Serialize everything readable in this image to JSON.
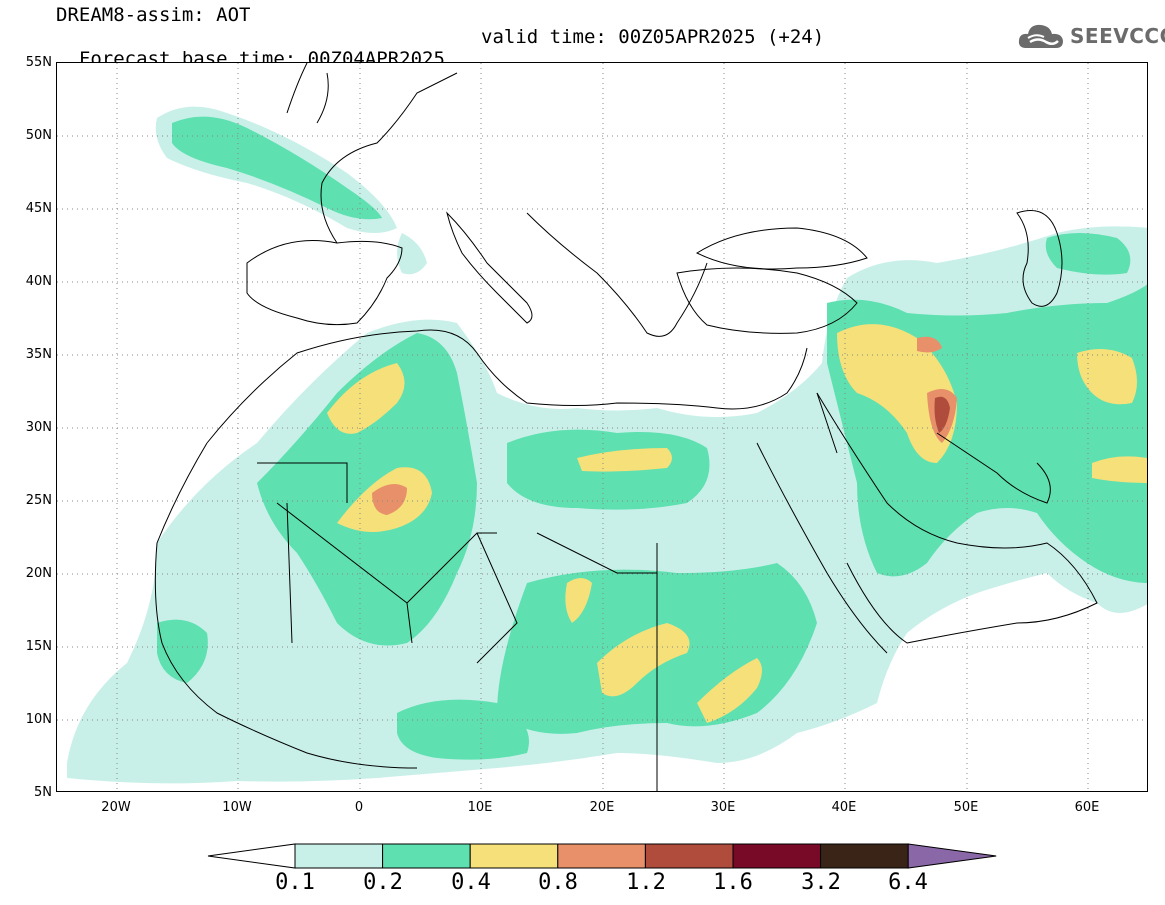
{
  "header": {
    "title_line1": "DREAM8-assim: AOT",
    "title_base": "Forecast base time: 00Z04APR2025",
    "title_valid": "valid time: 00Z05APR2025 (+24)",
    "logo_text": "SEEVCCC",
    "logo_icon": "cloud-icon"
  },
  "map": {
    "projection": "lat-lon",
    "lon_range": [
      -25,
      65
    ],
    "lat_range": [
      5,
      55
    ],
    "lat_labels": [
      "55N",
      "50N",
      "45N",
      "40N",
      "35N",
      "30N",
      "25N",
      "20N",
      "15N",
      "10N",
      "5N"
    ],
    "lon_labels": [
      "20W",
      "10W",
      "0",
      "10E",
      "20E",
      "30E",
      "40E",
      "50E",
      "60E"
    ],
    "grid": "dotted"
  },
  "legend": {
    "levels": [
      "0.1",
      "0.2",
      "0.4",
      "0.8",
      "1.2",
      "1.6",
      "3.2",
      "6.4"
    ],
    "colors": [
      "#ffffff",
      "#c8f0e8",
      "#5ee0b0",
      "#f5e07a",
      "#e8906a",
      "#b04c3c",
      "#780a28",
      "#3a2418",
      "#8a68a8"
    ]
  }
}
